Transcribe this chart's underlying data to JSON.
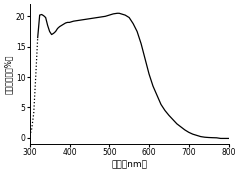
{
  "title": "",
  "xlabel": "波长（nm）",
  "ylabel": "外量子效率（%）",
  "xlim": [
    300,
    800
  ],
  "ylim": [
    -1,
    22
  ],
  "yticks": [
    0,
    5,
    10,
    15,
    20
  ],
  "xticks": [
    300,
    400,
    500,
    600,
    700,
    800
  ],
  "line_color": "#000000",
  "dot_color": "#000000",
  "background_color": "#ffffff",
  "curve_points": [
    [
      300,
      0.3
    ],
    [
      305,
      1.5
    ],
    [
      310,
      4.0
    ],
    [
      315,
      10.0
    ],
    [
      320,
      16.5
    ],
    [
      325,
      20.2
    ],
    [
      330,
      20.3
    ],
    [
      335,
      20.1
    ],
    [
      340,
      19.8
    ],
    [
      345,
      18.5
    ],
    [
      350,
      17.5
    ],
    [
      355,
      17.0
    ],
    [
      360,
      17.2
    ],
    [
      365,
      17.5
    ],
    [
      370,
      18.0
    ],
    [
      375,
      18.3
    ],
    [
      380,
      18.5
    ],
    [
      385,
      18.7
    ],
    [
      390,
      18.9
    ],
    [
      395,
      19.0
    ],
    [
      400,
      19.0
    ],
    [
      410,
      19.2
    ],
    [
      420,
      19.3
    ],
    [
      430,
      19.4
    ],
    [
      440,
      19.5
    ],
    [
      450,
      19.6
    ],
    [
      460,
      19.7
    ],
    [
      470,
      19.8
    ],
    [
      480,
      19.9
    ],
    [
      490,
      20.0
    ],
    [
      500,
      20.2
    ],
    [
      510,
      20.4
    ],
    [
      520,
      20.5
    ],
    [
      525,
      20.5
    ],
    [
      530,
      20.4
    ],
    [
      540,
      20.2
    ],
    [
      550,
      19.8
    ],
    [
      560,
      18.8
    ],
    [
      570,
      17.5
    ],
    [
      580,
      15.5
    ],
    [
      590,
      13.0
    ],
    [
      600,
      10.5
    ],
    [
      610,
      8.5
    ],
    [
      620,
      7.0
    ],
    [
      630,
      5.5
    ],
    [
      640,
      4.5
    ],
    [
      650,
      3.7
    ],
    [
      660,
      3.0
    ],
    [
      670,
      2.3
    ],
    [
      680,
      1.8
    ],
    [
      690,
      1.3
    ],
    [
      700,
      0.9
    ],
    [
      710,
      0.6
    ],
    [
      720,
      0.4
    ],
    [
      730,
      0.2
    ],
    [
      740,
      0.1
    ],
    [
      750,
      0.05
    ],
    [
      760,
      0.02
    ],
    [
      770,
      0.0
    ],
    [
      780,
      -0.1
    ],
    [
      790,
      -0.1
    ],
    [
      800,
      -0.1
    ]
  ],
  "dotted_segment": [
    [
      300,
      0.3
    ],
    [
      305,
      1.5
    ],
    [
      310,
      4.0
    ],
    [
      315,
      10.0
    ],
    [
      320,
      16.5
    ]
  ]
}
